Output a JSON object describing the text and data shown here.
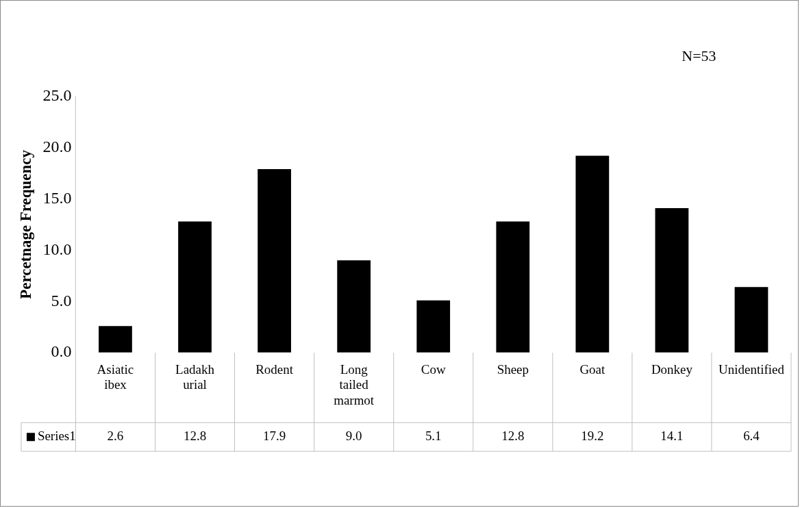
{
  "chart_data": {
    "type": "bar",
    "ylabel": "Percetnage Frequency",
    "annotations": [
      "N=53"
    ],
    "categories": [
      "Asiatic ibex",
      "Ladakh urial",
      "Rodent",
      "Long tailed marmot",
      "Cow",
      "Sheep",
      "Goat",
      "Donkey",
      "Unidentified"
    ],
    "series": [
      {
        "name": "Series1",
        "color": "#000000",
        "values": [
          2.6,
          12.8,
          17.9,
          9.0,
          5.1,
          12.8,
          19.2,
          14.1,
          6.4
        ],
        "value_labels": [
          "2.6",
          "12.8",
          "17.9",
          "9.0",
          "5.1",
          "12.8",
          "19.2",
          "14.1",
          "6.4"
        ]
      }
    ],
    "ylim": [
      0,
      25
    ],
    "yticks": [
      {
        "value": 0,
        "label": "0.0"
      },
      {
        "value": 5,
        "label": "5.0"
      },
      {
        "value": 10,
        "label": "10.0"
      },
      {
        "value": 15,
        "label": "15.0"
      },
      {
        "value": 20,
        "label": "20.0"
      },
      {
        "value": 25,
        "label": "25.0"
      }
    ],
    "grid": false,
    "legend": "bottom"
  }
}
